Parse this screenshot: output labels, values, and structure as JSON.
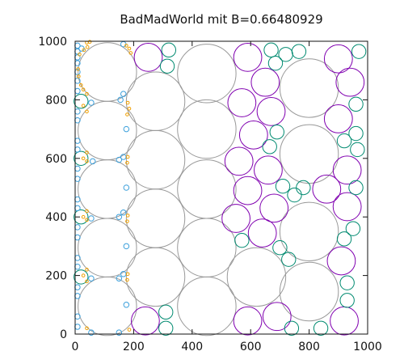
{
  "chart_data": {
    "type": "scatter",
    "title": "BadMadWorld mit B=0.66480929",
    "xlabel": "",
    "ylabel": "",
    "xlim": [
      0,
      1000
    ],
    "ylim": [
      0,
      1000
    ],
    "xticks": [
      0,
      200,
      400,
      600,
      800,
      1000
    ],
    "yticks": [
      0,
      200,
      400,
      600,
      800,
      1000
    ],
    "grid": false,
    "colors": {
      "gray": "#999999",
      "purple": "#8000b0",
      "teal": "#008a70",
      "blue": "#3ca0dc",
      "orange": "#f0a000"
    },
    "series": [
      {
        "color_key": "gray",
        "circles": [
          {
            "x": 110,
            "y": 895,
            "r": 100
          },
          {
            "x": 110,
            "y": 695,
            "r": 100
          },
          {
            "x": 110,
            "y": 495,
            "r": 100
          },
          {
            "x": 110,
            "y": 295,
            "r": 100
          },
          {
            "x": 110,
            "y": 95,
            "r": 100
          },
          {
            "x": 275,
            "y": 795,
            "r": 100
          },
          {
            "x": 275,
            "y": 595,
            "r": 100
          },
          {
            "x": 275,
            "y": 395,
            "r": 100
          },
          {
            "x": 275,
            "y": 195,
            "r": 100
          },
          {
            "x": 450,
            "y": 890,
            "r": 100
          },
          {
            "x": 450,
            "y": 700,
            "r": 100
          },
          {
            "x": 450,
            "y": 495,
            "r": 100
          },
          {
            "x": 450,
            "y": 295,
            "r": 100
          },
          {
            "x": 450,
            "y": 95,
            "r": 100
          },
          {
            "x": 620,
            "y": 195,
            "r": 100
          },
          {
            "x": 800,
            "y": 840,
            "r": 100
          },
          {
            "x": 800,
            "y": 615,
            "r": 100
          },
          {
            "x": 800,
            "y": 350,
            "r": 100
          },
          {
            "x": 800,
            "y": 145,
            "r": 100
          }
        ]
      },
      {
        "color_key": "purple",
        "circles": [
          {
            "x": 250,
            "y": 945,
            "r": 48
          },
          {
            "x": 590,
            "y": 945,
            "r": 48
          },
          {
            "x": 650,
            "y": 860,
            "r": 48
          },
          {
            "x": 570,
            "y": 790,
            "r": 48
          },
          {
            "x": 670,
            "y": 760,
            "r": 48
          },
          {
            "x": 610,
            "y": 680,
            "r": 48
          },
          {
            "x": 560,
            "y": 590,
            "r": 48
          },
          {
            "x": 660,
            "y": 560,
            "r": 48
          },
          {
            "x": 590,
            "y": 490,
            "r": 48
          },
          {
            "x": 680,
            "y": 430,
            "r": 48
          },
          {
            "x": 550,
            "y": 395,
            "r": 48
          },
          {
            "x": 640,
            "y": 345,
            "r": 48
          },
          {
            "x": 900,
            "y": 940,
            "r": 48
          },
          {
            "x": 940,
            "y": 860,
            "r": 48
          },
          {
            "x": 900,
            "y": 735,
            "r": 48
          },
          {
            "x": 930,
            "y": 560,
            "r": 48
          },
          {
            "x": 860,
            "y": 495,
            "r": 48
          },
          {
            "x": 930,
            "y": 435,
            "r": 48
          },
          {
            "x": 910,
            "y": 250,
            "r": 48
          },
          {
            "x": 590,
            "y": 45,
            "r": 48
          },
          {
            "x": 690,
            "y": 60,
            "r": 48
          },
          {
            "x": 920,
            "y": 45,
            "r": 48
          },
          {
            "x": 240,
            "y": 45,
            "r": 48
          }
        ]
      },
      {
        "color_key": "teal",
        "circles": [
          {
            "x": 320,
            "y": 970,
            "r": 24
          },
          {
            "x": 315,
            "y": 915,
            "r": 24
          },
          {
            "x": 670,
            "y": 970,
            "r": 24
          },
          {
            "x": 685,
            "y": 925,
            "r": 24
          },
          {
            "x": 720,
            "y": 955,
            "r": 24
          },
          {
            "x": 765,
            "y": 965,
            "r": 24
          },
          {
            "x": 970,
            "y": 965,
            "r": 24
          },
          {
            "x": 960,
            "y": 785,
            "r": 24
          },
          {
            "x": 690,
            "y": 690,
            "r": 24
          },
          {
            "x": 665,
            "y": 640,
            "r": 24
          },
          {
            "x": 960,
            "y": 685,
            "r": 24
          },
          {
            "x": 920,
            "y": 660,
            "r": 24
          },
          {
            "x": 965,
            "y": 630,
            "r": 24
          },
          {
            "x": 710,
            "y": 505,
            "r": 24
          },
          {
            "x": 750,
            "y": 475,
            "r": 24
          },
          {
            "x": 780,
            "y": 500,
            "r": 24
          },
          {
            "x": 960,
            "y": 500,
            "r": 24
          },
          {
            "x": 950,
            "y": 360,
            "r": 24
          },
          {
            "x": 920,
            "y": 325,
            "r": 24
          },
          {
            "x": 570,
            "y": 320,
            "r": 24
          },
          {
            "x": 700,
            "y": 295,
            "r": 24
          },
          {
            "x": 730,
            "y": 255,
            "r": 24
          },
          {
            "x": 930,
            "y": 175,
            "r": 24
          },
          {
            "x": 930,
            "y": 115,
            "r": 24
          },
          {
            "x": 310,
            "y": 75,
            "r": 24
          },
          {
            "x": 310,
            "y": 20,
            "r": 24
          },
          {
            "x": 740,
            "y": 20,
            "r": 24
          },
          {
            "x": 840,
            "y": 20,
            "r": 24
          },
          {
            "x": 20,
            "y": 795,
            "r": 24
          },
          {
            "x": 20,
            "y": 600,
            "r": 24
          },
          {
            "x": 20,
            "y": 400,
            "r": 24
          },
          {
            "x": 20,
            "y": 195,
            "r": 24
          }
        ]
      },
      {
        "color_key": "blue",
        "circles": [
          {
            "x": 8,
            "y": 985,
            "r": 9
          },
          {
            "x": 8,
            "y": 965,
            "r": 9
          },
          {
            "x": 22,
            "y": 975,
            "r": 9
          },
          {
            "x": 8,
            "y": 945,
            "r": 9
          },
          {
            "x": 8,
            "y": 925,
            "r": 9
          },
          {
            "x": 8,
            "y": 895,
            "r": 9
          },
          {
            "x": 8,
            "y": 865,
            "r": 9
          },
          {
            "x": 8,
            "y": 830,
            "r": 9
          },
          {
            "x": 8,
            "y": 760,
            "r": 9
          },
          {
            "x": 8,
            "y": 730,
            "r": 9
          },
          {
            "x": 8,
            "y": 660,
            "r": 9
          },
          {
            "x": 8,
            "y": 630,
            "r": 9
          },
          {
            "x": 8,
            "y": 565,
            "r": 9
          },
          {
            "x": 8,
            "y": 530,
            "r": 9
          },
          {
            "x": 8,
            "y": 460,
            "r": 9
          },
          {
            "x": 8,
            "y": 430,
            "r": 9
          },
          {
            "x": 8,
            "y": 365,
            "r": 9
          },
          {
            "x": 8,
            "y": 330,
            "r": 9
          },
          {
            "x": 8,
            "y": 260,
            "r": 9
          },
          {
            "x": 8,
            "y": 230,
            "r": 9
          },
          {
            "x": 8,
            "y": 160,
            "r": 9
          },
          {
            "x": 8,
            "y": 130,
            "r": 9
          },
          {
            "x": 8,
            "y": 60,
            "r": 9
          },
          {
            "x": 8,
            "y": 25,
            "r": 9
          },
          {
            "x": 55,
            "y": 790,
            "r": 9
          },
          {
            "x": 60,
            "y": 590,
            "r": 9
          },
          {
            "x": 55,
            "y": 395,
            "r": 9
          },
          {
            "x": 55,
            "y": 190,
            "r": 9
          },
          {
            "x": 55,
            "y": 5,
            "r": 9
          },
          {
            "x": 165,
            "y": 990,
            "r": 9
          },
          {
            "x": 155,
            "y": 800,
            "r": 9
          },
          {
            "x": 165,
            "y": 820,
            "r": 9
          },
          {
            "x": 150,
            "y": 595,
            "r": 9
          },
          {
            "x": 165,
            "y": 605,
            "r": 9
          },
          {
            "x": 150,
            "y": 400,
            "r": 9
          },
          {
            "x": 165,
            "y": 415,
            "r": 9
          },
          {
            "x": 150,
            "y": 190,
            "r": 9
          },
          {
            "x": 165,
            "y": 205,
            "r": 9
          },
          {
            "x": 150,
            "y": 5,
            "r": 9
          },
          {
            "x": 175,
            "y": 700,
            "r": 9
          },
          {
            "x": 175,
            "y": 500,
            "r": 9
          },
          {
            "x": 175,
            "y": 300,
            "r": 9
          },
          {
            "x": 175,
            "y": 100,
            "r": 9
          }
        ]
      },
      {
        "color_key": "orange",
        "circles": [
          {
            "x": 40,
            "y": 995,
            "r": 5
          },
          {
            "x": 50,
            "y": 998,
            "r": 5
          },
          {
            "x": 42,
            "y": 980,
            "r": 5
          },
          {
            "x": 30,
            "y": 970,
            "r": 5
          },
          {
            "x": 15,
            "y": 955,
            "r": 5
          },
          {
            "x": 10,
            "y": 905,
            "r": 5
          },
          {
            "x": 12,
            "y": 880,
            "r": 5
          },
          {
            "x": 20,
            "y": 850,
            "r": 5
          },
          {
            "x": 28,
            "y": 835,
            "r": 5
          },
          {
            "x": 40,
            "y": 820,
            "r": 5
          },
          {
            "x": 28,
            "y": 780,
            "r": 5
          },
          {
            "x": 40,
            "y": 760,
            "r": 5
          },
          {
            "x": 40,
            "y": 620,
            "r": 5
          },
          {
            "x": 28,
            "y": 600,
            "r": 5
          },
          {
            "x": 40,
            "y": 590,
            "r": 5
          },
          {
            "x": 40,
            "y": 420,
            "r": 5
          },
          {
            "x": 28,
            "y": 400,
            "r": 5
          },
          {
            "x": 40,
            "y": 390,
            "r": 5
          },
          {
            "x": 40,
            "y": 220,
            "r": 5
          },
          {
            "x": 28,
            "y": 200,
            "r": 5
          },
          {
            "x": 40,
            "y": 180,
            "r": 5
          },
          {
            "x": 40,
            "y": 20,
            "r": 5
          },
          {
            "x": 175,
            "y": 985,
            "r": 5
          },
          {
            "x": 185,
            "y": 975,
            "r": 5
          },
          {
            "x": 190,
            "y": 960,
            "r": 5
          },
          {
            "x": 180,
            "y": 790,
            "r": 5
          },
          {
            "x": 185,
            "y": 770,
            "r": 5
          },
          {
            "x": 178,
            "y": 750,
            "r": 5
          },
          {
            "x": 180,
            "y": 605,
            "r": 5
          },
          {
            "x": 178,
            "y": 585,
            "r": 5
          },
          {
            "x": 180,
            "y": 405,
            "r": 5
          },
          {
            "x": 178,
            "y": 385,
            "r": 5
          },
          {
            "x": 180,
            "y": 205,
            "r": 5
          },
          {
            "x": 178,
            "y": 185,
            "r": 5
          },
          {
            "x": 185,
            "y": 15,
            "r": 5
          }
        ]
      }
    ]
  }
}
